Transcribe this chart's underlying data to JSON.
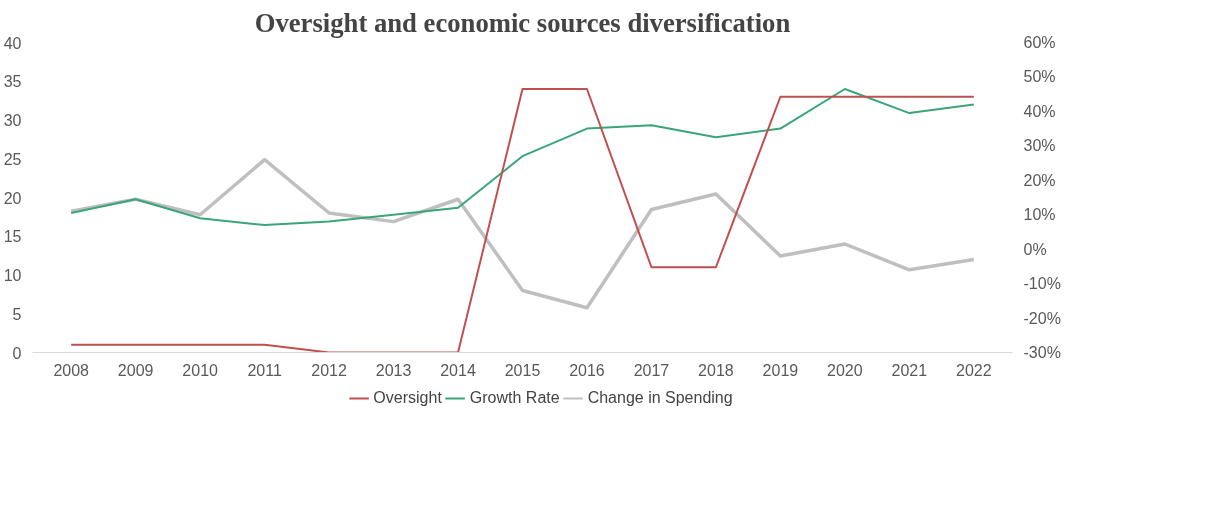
{
  "chart_data": {
    "type": "line",
    "title": "Oversight and economic sources diversification",
    "categories": [
      "2008",
      "2009",
      "2010",
      "2011",
      "2012",
      "2013",
      "2014",
      "2015",
      "2016",
      "2017",
      "2018",
      "2019",
      "2020",
      "2021",
      "2022"
    ],
    "series": [
      {
        "name": "Oversight",
        "color": "#c0504d",
        "values": [
          1,
          1,
          1,
          1,
          0,
          0,
          0,
          34,
          34,
          11,
          11,
          33,
          33,
          33,
          33
        ]
      },
      {
        "name": "Growth Rate",
        "color": "#3aa57a",
        "axis": "y2",
        "values": [
          10.5,
          14.5,
          9,
          7,
          8,
          10,
          12,
          27,
          35,
          36,
          32.5,
          35,
          46.5,
          39.5,
          42
        ]
      },
      {
        "name": "Change in Spending",
        "color": "#bfbfbf",
        "axis": "y2",
        "values": [
          11,
          14.5,
          10,
          26,
          10.5,
          8,
          14.5,
          -12,
          -17,
          11.5,
          16,
          -2,
          1.5,
          -6,
          -3
        ]
      }
    ],
    "ylim": [
      0,
      40
    ],
    "yticks": [
      0,
      5,
      10,
      15,
      20,
      25,
      30,
      35,
      40
    ],
    "y2lim": [
      -30,
      60
    ],
    "y2ticks": [
      {
        "value": -30,
        "label": "-30%"
      },
      {
        "value": -20,
        "label": "-20%"
      },
      {
        "value": -10,
        "label": "-10%"
      },
      {
        "value": 0,
        "label": "0%"
      },
      {
        "value": 10,
        "label": "10%"
      },
      {
        "value": 20,
        "label": "20%"
      },
      {
        "value": 30,
        "label": "30%"
      },
      {
        "value": 40,
        "label": "40%"
      },
      {
        "value": 50,
        "label": "50%"
      },
      {
        "value": 60,
        "label": "60%"
      }
    ],
    "grid": false,
    "legend": "bottom",
    "marker": "none",
    "line_style": "solid"
  }
}
